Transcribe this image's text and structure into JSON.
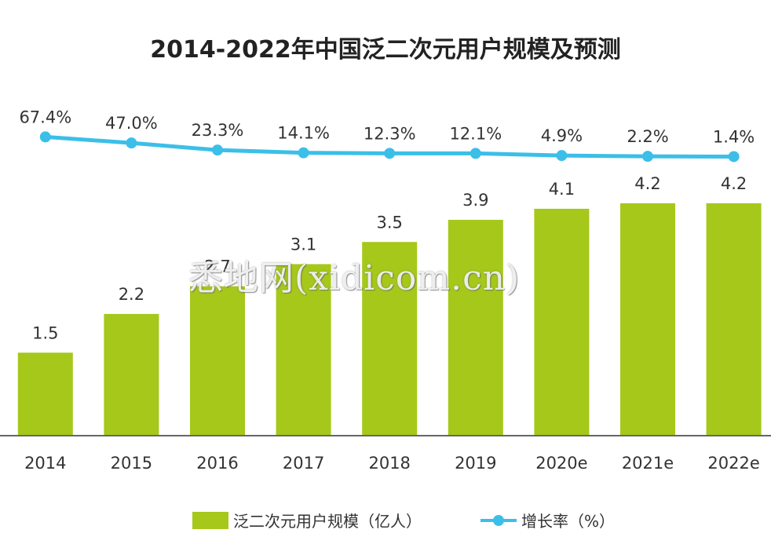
{
  "title": "2014-2022年中国泛二次元用户规模及预测",
  "watermark": "悉地网(xidicom.cn)",
  "colors": {
    "bar": "#a5c81a",
    "line": "#3bbfe8",
    "axis": "#555555",
    "text": "#333333"
  },
  "chart_data": {
    "type": "bar+line",
    "categories": [
      "2014",
      "2015",
      "2016",
      "2017",
      "2018",
      "2019",
      "2020e",
      "2021e",
      "2022e"
    ],
    "series": [
      {
        "name": "泛二次元用户规模（亿人）",
        "type": "bar",
        "values": [
          1.5,
          2.2,
          2.7,
          3.1,
          3.5,
          3.9,
          4.1,
          4.2,
          4.2
        ],
        "labels": [
          "1.5",
          "2.2",
          "2.7",
          "3.1",
          "3.5",
          "3.9",
          "4.1",
          "4.2",
          "4.2"
        ]
      },
      {
        "name": "增长率（%）",
        "type": "line",
        "values": [
          67.4,
          47.0,
          23.3,
          14.1,
          12.3,
          12.1,
          4.9,
          2.2,
          1.4
        ],
        "labels": [
          "67.4%",
          "47.0%",
          "23.3%",
          "14.1%",
          "12.3%",
          "12.1%",
          "4.9%",
          "2.2%",
          "1.4%"
        ]
      }
    ],
    "legend_position": "bottom",
    "grid": false
  }
}
